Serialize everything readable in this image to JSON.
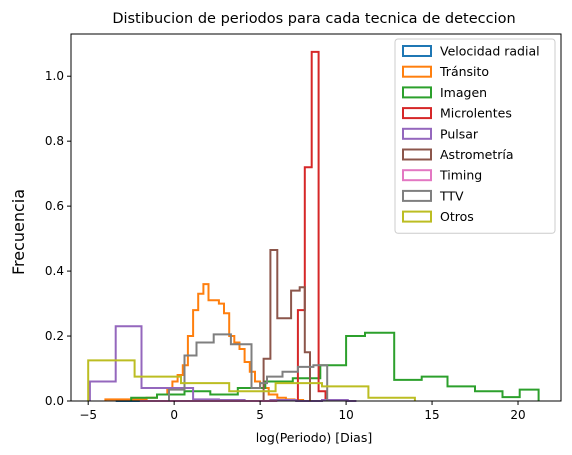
{
  "chart_data": {
    "type": "histogram-step",
    "title": "Distibucion de periodos para cada tecnica de deteccion",
    "xlabel": "log(Periodo) [Dias]",
    "ylabel": "Frecuencia",
    "xlim": [
      -6.0,
      22.5
    ],
    "ylim": [
      0,
      1.13
    ],
    "xticks": [
      -5,
      0,
      5,
      10,
      15,
      20
    ],
    "yticks": [
      0.0,
      0.2,
      0.4,
      0.6,
      0.8,
      1.0
    ],
    "yticklabels": [
      "0.0",
      "0.2",
      "0.4",
      "0.6",
      "0.8",
      "1.0"
    ],
    "legend_position": "top-right",
    "series": [
      {
        "name": "Velocidad radial",
        "color": "#1f77b4",
        "edges": [
          -3.4,
          -2.8,
          -2.2,
          -1.6,
          -1.0,
          -0.4,
          0.2,
          0.8,
          1.4,
          2.0,
          2.6,
          3.2
        ],
        "values": [
          0.0,
          0.0,
          0.0,
          0.0,
          0.0,
          0.0,
          0.0,
          0.0,
          0.0,
          0.0,
          0.0
        ]
      },
      {
        "name": "Tránsito",
        "color": "#ff7f0e",
        "edges": [
          -4.0,
          -3.2,
          -2.4,
          -1.6,
          -1.0,
          -0.4,
          -0.1,
          0.2,
          0.5,
          0.8,
          1.1,
          1.4,
          1.7,
          2.0,
          2.3,
          2.6,
          2.9,
          3.2,
          3.5,
          3.8,
          4.1,
          4.4,
          4.7,
          5.0,
          5.5,
          6.0,
          6.5,
          7.0,
          7.5
        ],
        "values": [
          0.005,
          0.005,
          0.005,
          0.01,
          0.02,
          0.04,
          0.06,
          0.08,
          0.11,
          0.2,
          0.28,
          0.33,
          0.36,
          0.31,
          0.31,
          0.3,
          0.27,
          0.2,
          0.18,
          0.16,
          0.12,
          0.09,
          0.06,
          0.04,
          0.02,
          0.01,
          0.005,
          0.003
        ]
      },
      {
        "name": "Imagen",
        "color": "#2ca02c",
        "edges": [
          -2.5,
          -1.0,
          0.6,
          2.1,
          3.7,
          5.3,
          6.9,
          8.5,
          10.0,
          11.1,
          12.8,
          14.4,
          15.9,
          17.5,
          19.1,
          20.1,
          21.2
        ],
        "values": [
          0.01,
          0.02,
          0.03,
          0.02,
          0.04,
          0.06,
          0.07,
          0.11,
          0.2,
          0.21,
          0.065,
          0.075,
          0.045,
          0.03,
          0.012,
          0.035
        ]
      },
      {
        "name": "Microlentes",
        "color": "#d62728",
        "edges": [
          7.2,
          7.6,
          8.0,
          8.4,
          8.8
        ],
        "values": [
          0.28,
          0.72,
          1.075,
          0.03
        ]
      },
      {
        "name": "Pulsar",
        "color": "#9467bd",
        "edges": [
          -4.9,
          -3.4,
          -1.9,
          -0.4,
          1.1,
          2.6,
          4.1,
          5.6,
          7.1,
          8.6,
          10.1,
          10.6
        ],
        "values": [
          0.06,
          0.23,
          0.04,
          0.04,
          0.005,
          0.003,
          0.0,
          0.003,
          0.0,
          0.003,
          0.0
        ]
      },
      {
        "name": "Astrometría",
        "color": "#8c564b",
        "edges": [
          5.2,
          5.6,
          6.0,
          6.8,
          7.3,
          7.6,
          7.9
        ],
        "values": [
          0.13,
          0.465,
          0.255,
          0.34,
          0.35,
          0.15
        ]
      },
      {
        "name": "Timing",
        "color": "#e377c2",
        "edges": [
          -2.0,
          -1.0,
          1.0,
          3.0,
          4.5,
          6.0
        ],
        "values": [
          0.0,
          0.0,
          0.0,
          0.0,
          0.0
        ]
      },
      {
        "name": "TTV",
        "color": "#7f7f7f",
        "edges": [
          -0.3,
          0.6,
          1.3,
          2.3,
          3.3,
          4.5,
          5.0,
          5.4,
          6.3,
          7.2,
          8.1,
          8.9
        ],
        "values": [
          0.035,
          0.14,
          0.18,
          0.205,
          0.175,
          0.04,
          0.055,
          0.075,
          0.09,
          0.105,
          0.11
        ]
      },
      {
        "name": "Otros",
        "color": "#bcbd22",
        "edges": [
          -5.0,
          -2.3,
          0.4,
          3.2,
          5.9,
          8.6,
          11.3,
          14.0
        ],
        "values": [
          0.125,
          0.075,
          0.055,
          0.03,
          0.055,
          0.045,
          0.01
        ]
      }
    ]
  }
}
